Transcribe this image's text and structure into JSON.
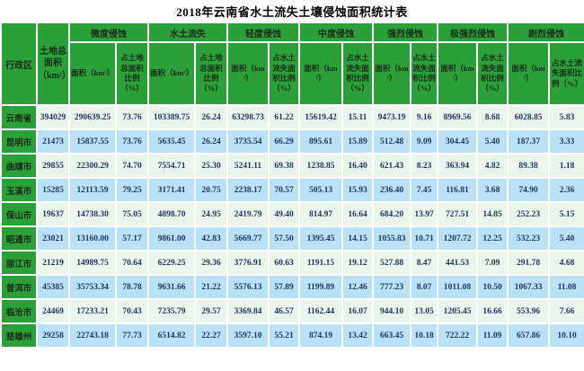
{
  "title": "2018年云南省水土流失土壤侵蚀面积统计表",
  "colors": {
    "header_green": "#2CA038",
    "row_green": "#EBF5EC",
    "row_blue": "#B9E2F8",
    "header_text": "#1A2B1A",
    "data_text": "#1F3864",
    "grid_white": "#FFFFFF",
    "title_text": "#000000"
  },
  "table": {
    "corner_header": "行政区",
    "land_area_header": "土地总面积（km²）",
    "groups": [
      {
        "label": "微度侵蚀",
        "sub": [
          "面积（km²）",
          "占土地总面积比例（%）"
        ]
      },
      {
        "label": "水土流失",
        "sub": [
          "面积（km²）",
          "占土地总面积比例（%）"
        ]
      },
      {
        "label": "轻度侵蚀",
        "sub": [
          "面积（km²）",
          "占水土流失面积比例（%）"
        ]
      },
      {
        "label": "中度侵蚀",
        "sub": [
          "面积（km²）",
          "占水土流失面积比例（%）"
        ]
      },
      {
        "label": "强烈侵蚀",
        "sub": [
          "面积（km²）",
          "占水土流失面积比例（%）"
        ]
      },
      {
        "label": "极强烈侵蚀",
        "sub": [
          "面积（km²）",
          "占水土流失面积比例（%）"
        ]
      },
      {
        "label": "剧烈侵蚀",
        "sub": [
          "面积（km²）",
          "占水土流失面积比例（%）"
        ]
      }
    ],
    "rows": [
      {
        "region": "云南省",
        "values": [
          "394029",
          "290639.25",
          "73.76",
          "103389.75",
          "26.24",
          "63298.73",
          "61.22",
          "15619.42",
          "15.11",
          "9473.19",
          "9.16",
          "8969.56",
          "8.68",
          "6028.85",
          "5.83"
        ]
      },
      {
        "region": "昆明市",
        "values": [
          "21473",
          "15837.55",
          "73.76",
          "5635.45",
          "26.24",
          "3735.54",
          "66.29",
          "895.61",
          "15.89",
          "512.48",
          "9.09",
          "304.45",
          "5.40",
          "187.37",
          "3.33"
        ]
      },
      {
        "region": "曲靖市",
        "values": [
          "29855",
          "22300.29",
          "74.70",
          "7554.71",
          "25.30",
          "5241.11",
          "69.38",
          "1238.85",
          "16.40",
          "621.43",
          "8.23",
          "363.94",
          "4.82",
          "89.38",
          "1.18"
        ]
      },
      {
        "region": "玉溪市",
        "values": [
          "15285",
          "12113.59",
          "79.25",
          "3171.41",
          "20.75",
          "2238.17",
          "70.57",
          "505.13",
          "15.93",
          "236.40",
          "7.45",
          "116.81",
          "3.68",
          "74.90",
          "2.36"
        ]
      },
      {
        "region": "保山市",
        "values": [
          "19637",
          "14738.30",
          "75.05",
          "4898.70",
          "24.95",
          "2419.79",
          "49.40",
          "814.97",
          "16.64",
          "684.20",
          "13.97",
          "727.51",
          "14.85",
          "252.23",
          "5.15"
        ]
      },
      {
        "region": "昭通市",
        "values": [
          "23021",
          "13160.00",
          "57.17",
          "9861.00",
          "42.83",
          "5669.77",
          "57.50",
          "1395.45",
          "14.15",
          "1055.83",
          "10.71",
          "1207.72",
          "12.25",
          "532.23",
          "5.40"
        ]
      },
      {
        "region": "丽江市",
        "values": [
          "21219",
          "14989.75",
          "70.64",
          "6229.25",
          "29.36",
          "3776.91",
          "60.63",
          "1191.15",
          "19.12",
          "527.88",
          "8.47",
          "441.53",
          "7.09",
          "291.78",
          "4.68"
        ]
      },
      {
        "region": "普洱市",
        "values": [
          "45385",
          "35753.34",
          "78.78",
          "9631.66",
          "21.22",
          "5576.13",
          "57.89",
          "1199.89",
          "12.46",
          "777.23",
          "8.07",
          "1011.08",
          "10.50",
          "1067.33",
          "11.08"
        ]
      },
      {
        "region": "临沧市",
        "values": [
          "24469",
          "17233.21",
          "70.43",
          "7235.79",
          "29.57",
          "3369.84",
          "46.57",
          "1162.44",
          "16.07",
          "944.10",
          "13.05",
          "1205.45",
          "16.66",
          "553.96",
          "7.66"
        ]
      },
      {
        "region": "楚雄州",
        "values": [
          "29258",
          "22743.18",
          "77.73",
          "6514.82",
          "22.27",
          "3597.10",
          "55.21",
          "874.19",
          "13.42",
          "663.45",
          "10.18",
          "722.22",
          "11.09",
          "657.86",
          "10.10"
        ]
      }
    ]
  },
  "chart_data": {
    "type": "table",
    "title": "2018年云南省水土流失土壤侵蚀面积统计表",
    "columns": [
      "行政区",
      "土地总面积（km²）",
      "微度侵蚀-面积（km²）",
      "微度侵蚀-占土地总面积比例（%）",
      "水土流失-面积（km²）",
      "水土流失-占土地总面积比例（%）",
      "轻度侵蚀-面积（km²）",
      "轻度侵蚀-占水土流失面积比例（%）",
      "中度侵蚀-面积（km²）",
      "中度侵蚀-占水土流失面积比例（%）",
      "强烈侵蚀-面积（km²）",
      "强烈侵蚀-占水土流失面积比例（%）",
      "极强烈侵蚀-面积（km²）",
      "极强烈侵蚀-占水土流失面积比例（%）",
      "剧烈侵蚀-面积（km²）",
      "剧烈侵蚀-占水土流失面积比例（%）"
    ],
    "rows": [
      [
        "云南省",
        394029,
        290639.25,
        73.76,
        103389.75,
        26.24,
        63298.73,
        61.22,
        15619.42,
        15.11,
        9473.19,
        9.16,
        8969.56,
        8.68,
        6028.85,
        5.83
      ],
      [
        "昆明市",
        21473,
        15837.55,
        73.76,
        5635.45,
        26.24,
        3735.54,
        66.29,
        895.61,
        15.89,
        512.48,
        9.09,
        304.45,
        5.4,
        187.37,
        3.33
      ],
      [
        "曲靖市",
        29855,
        22300.29,
        74.7,
        7554.71,
        25.3,
        5241.11,
        69.38,
        1238.85,
        16.4,
        621.43,
        8.23,
        363.94,
        4.82,
        89.38,
        1.18
      ],
      [
        "玉溪市",
        15285,
        12113.59,
        79.25,
        3171.41,
        20.75,
        2238.17,
        70.57,
        505.13,
        15.93,
        236.4,
        7.45,
        116.81,
        3.68,
        74.9,
        2.36
      ],
      [
        "保山市",
        19637,
        14738.3,
        75.05,
        4898.7,
        24.95,
        2419.79,
        49.4,
        814.97,
        16.64,
        684.2,
        13.97,
        727.51,
        14.85,
        252.23,
        5.15
      ],
      [
        "昭通市",
        23021,
        13160.0,
        57.17,
        9861.0,
        42.83,
        5669.77,
        57.5,
        1395.45,
        14.15,
        1055.83,
        10.71,
        1207.72,
        12.25,
        532.23,
        5.4
      ],
      [
        "丽江市",
        21219,
        14989.75,
        70.64,
        6229.25,
        29.36,
        3776.91,
        60.63,
        1191.15,
        19.12,
        527.88,
        8.47,
        441.53,
        7.09,
        291.78,
        4.68
      ],
      [
        "普洱市",
        45385,
        35753.34,
        78.78,
        9631.66,
        21.22,
        5576.13,
        57.89,
        1199.89,
        12.46,
        777.23,
        8.07,
        1011.08,
        10.5,
        1067.33,
        11.08
      ],
      [
        "临沧市",
        24469,
        17233.21,
        70.43,
        7235.79,
        29.57,
        3369.84,
        46.57,
        1162.44,
        16.07,
        944.1,
        13.05,
        1205.45,
        16.66,
        553.96,
        7.66
      ],
      [
        "楚雄州",
        29258,
        22743.18,
        77.73,
        6514.82,
        22.27,
        3597.1,
        55.21,
        874.19,
        13.42,
        663.45,
        10.18,
        722.22,
        11.09,
        657.86,
        10.1
      ]
    ]
  }
}
